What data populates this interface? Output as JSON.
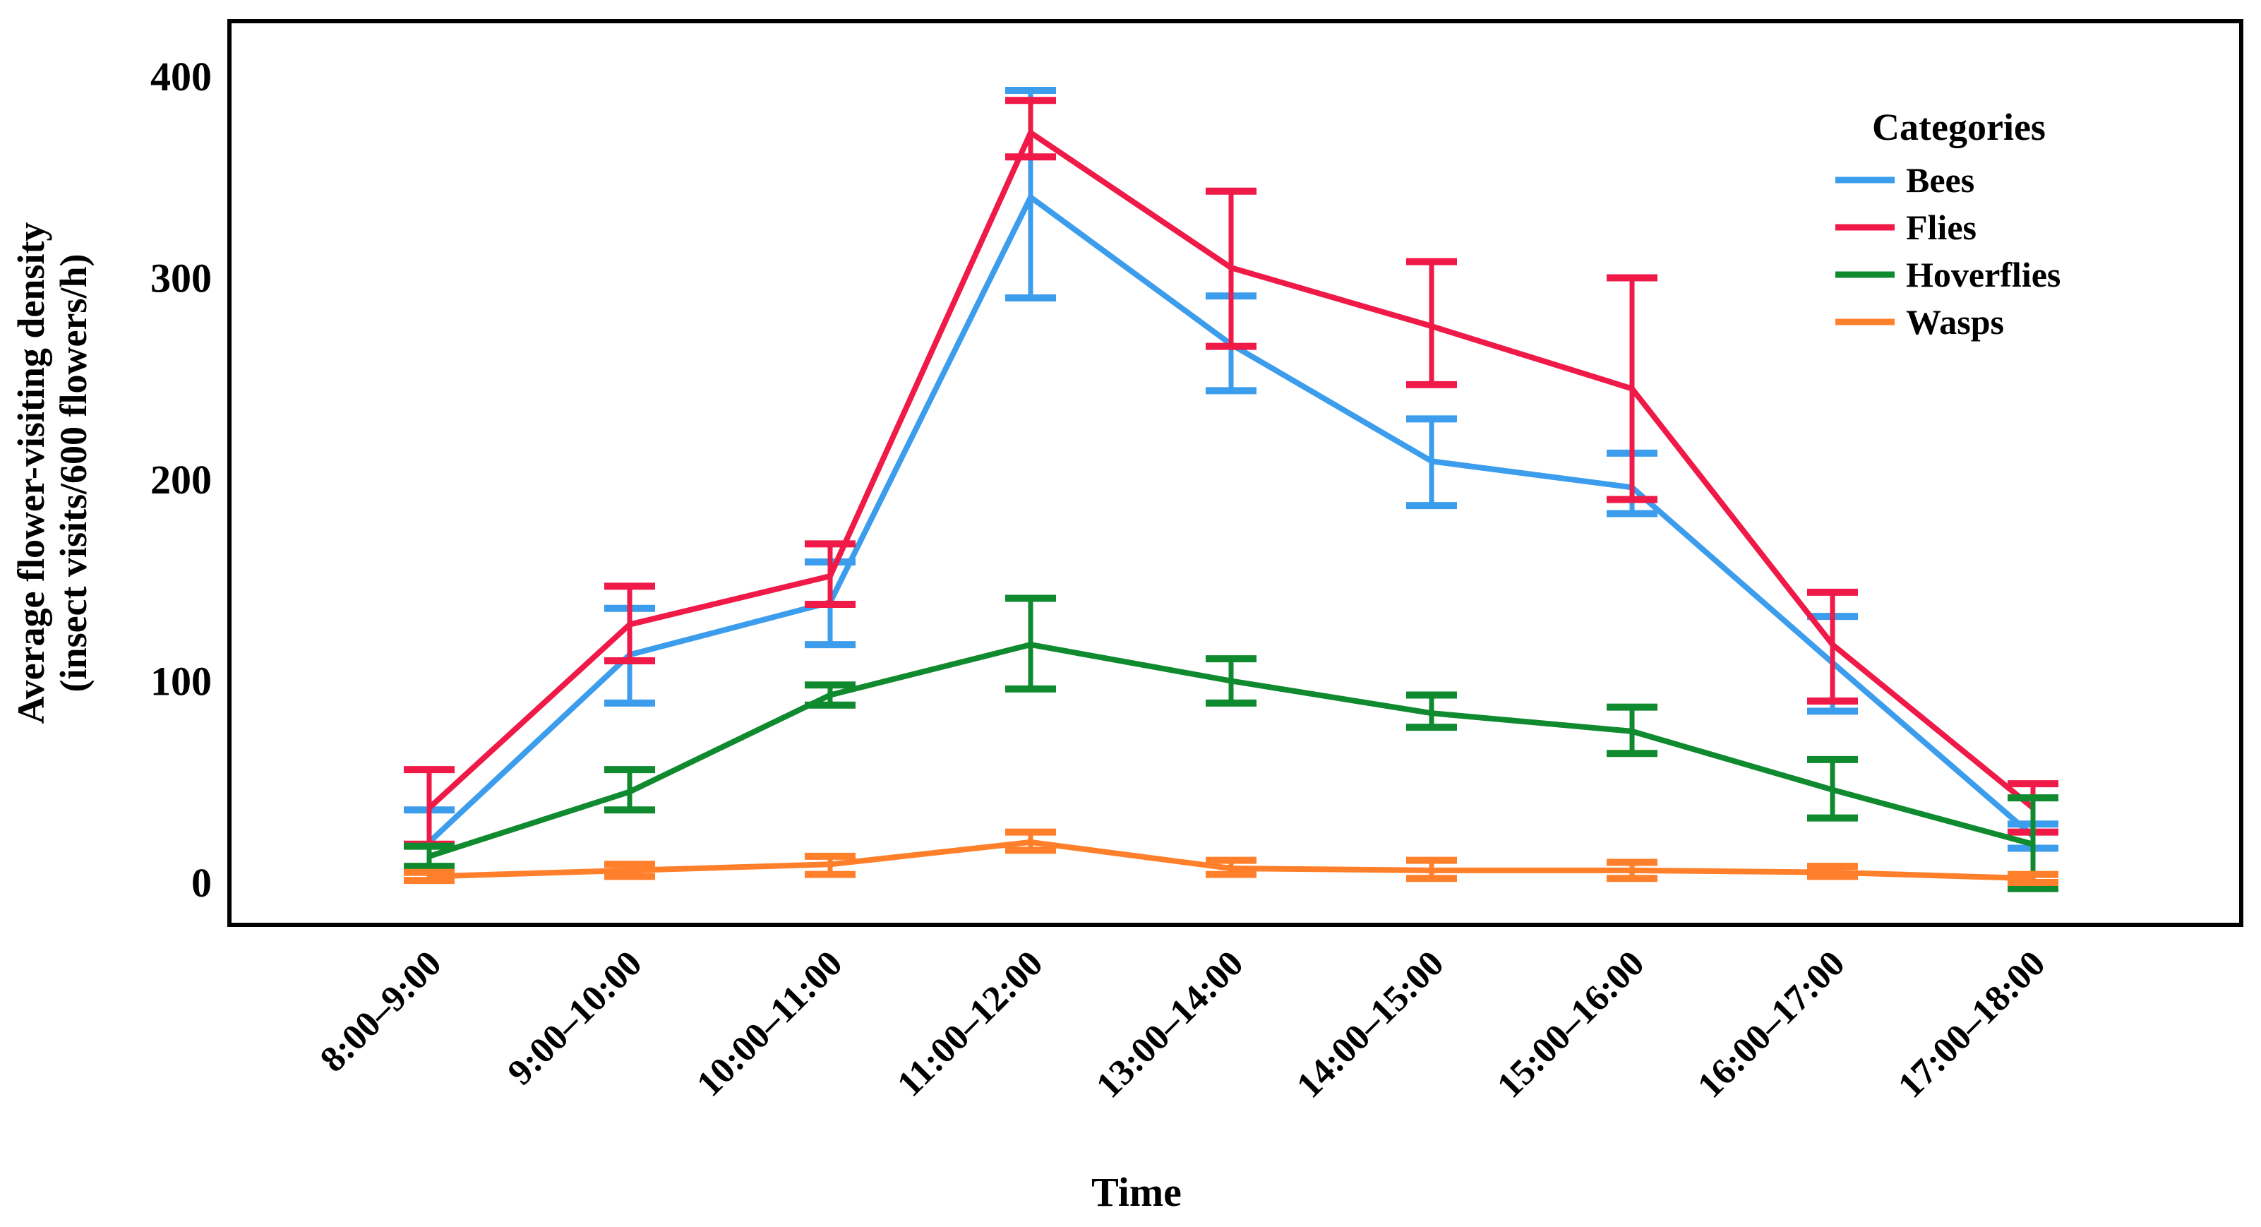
{
  "figure": {
    "legend_title": "Categories",
    "x_title": "Time",
    "y_title_line1": "Average flower-visiting density",
    "y_title_line2": "(insect visits/600 flowers/h)"
  },
  "chart_data": {
    "type": "line",
    "error_bars": true,
    "title": "",
    "xlabel": "Time",
    "ylabel": "Average flower-visiting density (insect visits/600 flowers/h)",
    "ylim": [
      0,
      400
    ],
    "y_ticks": [
      0,
      100,
      200,
      300,
      400
    ],
    "grid": false,
    "legend_title": "Categories",
    "legend_position": "top-right-inside",
    "categories": [
      "8:00–9:00",
      "9:00–10:00",
      "10:00–11:00",
      "11:00–12:00",
      "13:00–14:00",
      "14:00–15:00",
      "15:00–16:00",
      "16:00–17:00",
      "17:00–18:00"
    ],
    "series": [
      {
        "name": "Bees",
        "color": "#3B9DEC",
        "values": [
          20,
          113,
          139,
          340,
          267,
          209,
          196,
          109,
          23
        ],
        "err_low": [
          6,
          89,
          118,
          290,
          244,
          187,
          183,
          85,
          17
        ],
        "err_high": [
          36,
          136,
          159,
          393,
          291,
          230,
          213,
          132,
          29
        ]
      },
      {
        "name": "Flies",
        "color": "#EF1A47",
        "values": [
          37,
          128,
          152,
          372,
          305,
          276,
          245,
          118,
          37
        ],
        "err_low": [
          19,
          110,
          138,
          360,
          266,
          247,
          190,
          90,
          25
        ],
        "err_high": [
          56,
          147,
          168,
          388,
          343,
          308,
          300,
          144,
          49
        ]
      },
      {
        "name": "Hoverflies",
        "color": "#0F8A2F",
        "values": [
          13,
          45,
          93,
          118,
          100,
          84,
          75,
          46,
          19
        ],
        "err_low": [
          8,
          36,
          88,
          96,
          89,
          77,
          64,
          32,
          -3
        ],
        "err_high": [
          18,
          56,
          98,
          141,
          111,
          93,
          87,
          61,
          42
        ]
      },
      {
        "name": "Wasps",
        "color": "#FF7F2B",
        "values": [
          3,
          6,
          9,
          20,
          7,
          6,
          6,
          5,
          2
        ],
        "err_low": [
          1,
          3,
          4,
          16,
          4,
          2,
          2,
          3,
          0
        ],
        "err_high": [
          5,
          9,
          13,
          25,
          11,
          11,
          10,
          8,
          4
        ]
      }
    ]
  }
}
